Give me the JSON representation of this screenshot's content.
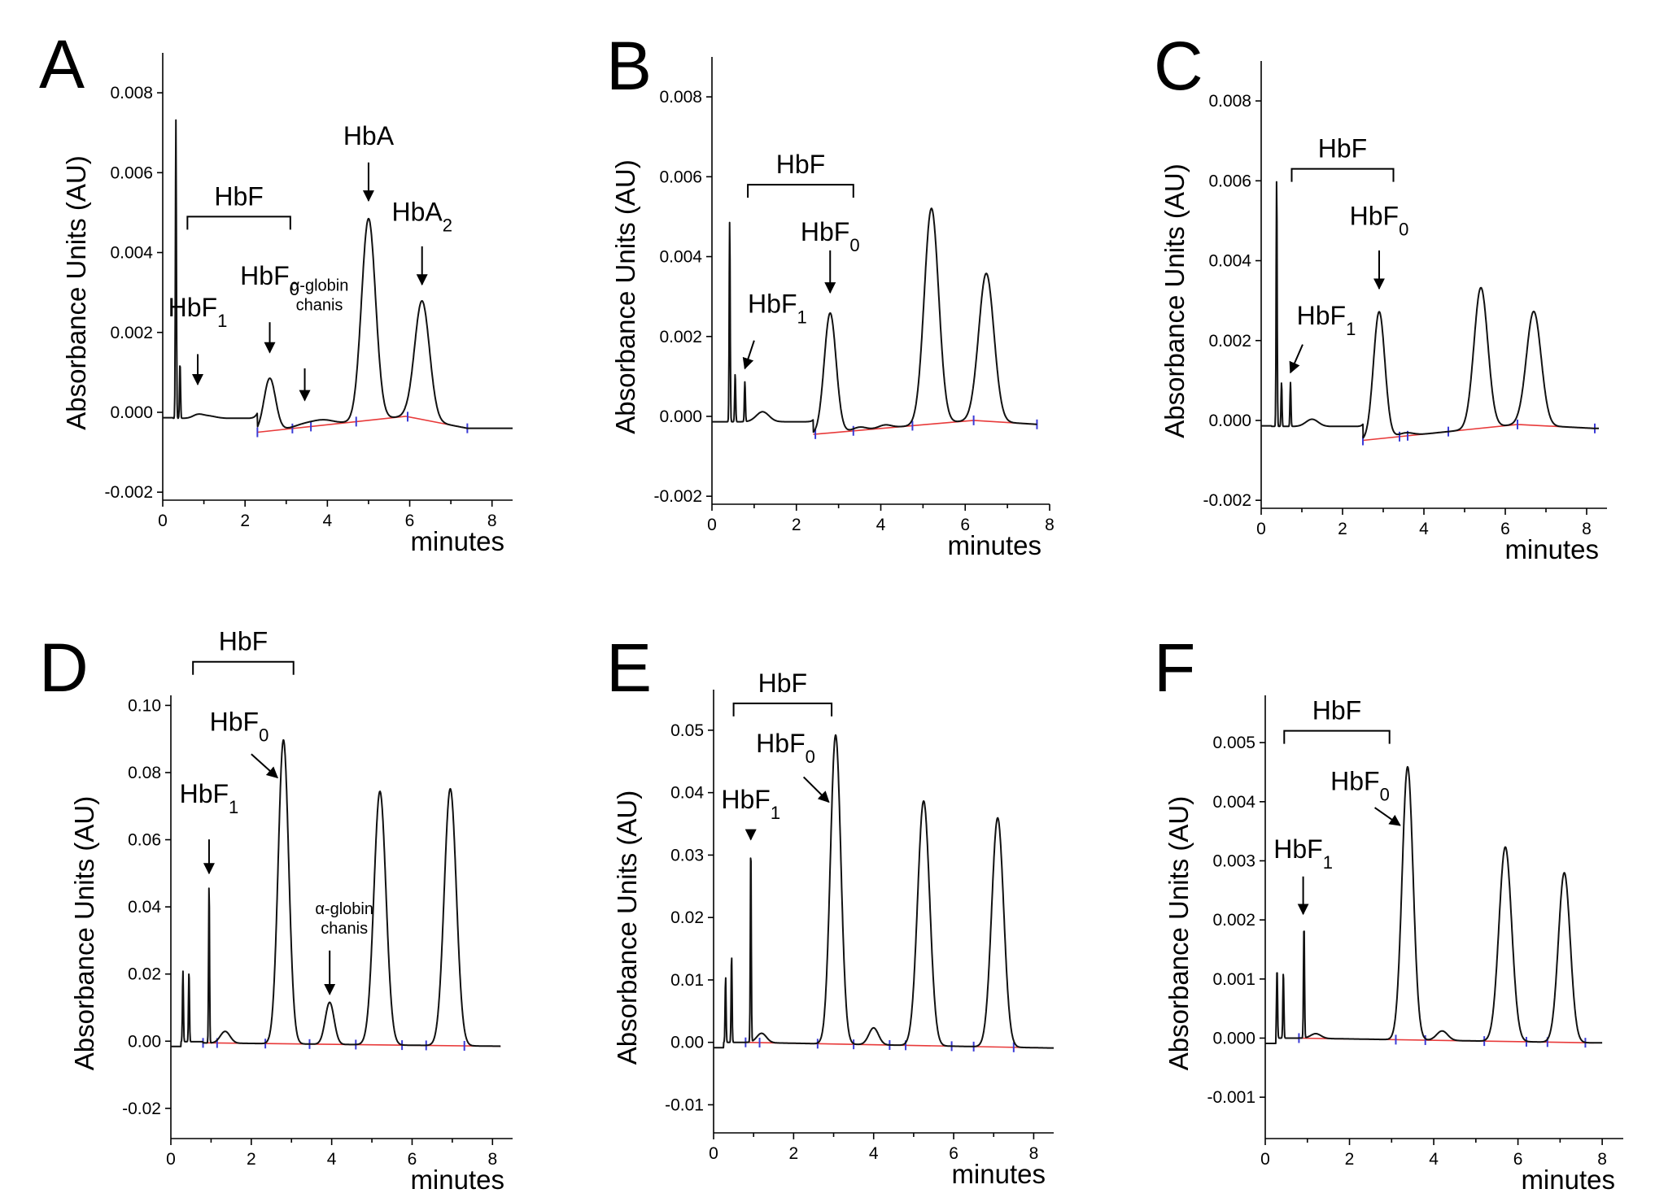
{
  "chart_data": [
    {
      "panel": "A",
      "type": "line",
      "ylabel": "Absorbance Units (AU)",
      "xlabel": "minutes",
      "xlim": [
        0,
        8.5
      ],
      "ylim": [
        -0.0022,
        0.009
      ],
      "xticks": [
        0,
        2,
        4,
        6,
        8
      ],
      "yticks": [
        -0.002,
        0.0,
        0.002,
        0.004,
        0.006,
        0.008
      ],
      "ytick_labels": [
        "-0.002",
        "0.000",
        "0.002",
        "0.004",
        "0.006",
        "0.008"
      ],
      "x_end": 8.5,
      "injection_spikes": [
        {
          "x": 0.32,
          "height": 0.0075
        },
        {
          "x": 0.42,
          "height": 0.0014
        }
      ],
      "peaks": [
        {
          "name": "HbF1",
          "x": 0.85,
          "height": 8e-05,
          "width": 0.12
        },
        {
          "x": 1.1,
          "height": 6e-05,
          "width": 0.18
        },
        {
          "name": "HbF0",
          "x": 2.6,
          "height": 0.00132,
          "width": 0.14
        },
        {
          "name": "alpha-globin chains",
          "x": 3.45,
          "height": 8e-05,
          "width": 0.25
        },
        {
          "x": 3.9,
          "height": 0.00012,
          "width": 0.25
        },
        {
          "name": "HbA",
          "x": 5.0,
          "height": 0.00505,
          "width": 0.17
        },
        {
          "name": "HbA2",
          "x": 6.3,
          "height": 0.00297,
          "width": 0.18
        }
      ],
      "baseline": [
        [
          2.3,
          -0.0005
        ],
        [
          5.9,
          -0.0001
        ],
        [
          7.4,
          -0.0004
        ]
      ],
      "baseline_marks": [
        2.3,
        3.15,
        3.6,
        4.7,
        5.95,
        7.4
      ],
      "annotations": [
        {
          "text": "HbF",
          "kind": "bracket",
          "x1": 0.6,
          "x2": 3.1,
          "y": 0.0049
        },
        {
          "text": "HbF",
          "sub": "1",
          "kind": "arrow",
          "x": 0.85,
          "label_y": 0.0024,
          "arrow_from": 0.0017,
          "arrow_to": 0.0007
        },
        {
          "text": "HbF",
          "sub": "0",
          "kind": "arrow",
          "x": 2.6,
          "label_y": 0.0032,
          "arrow_from": 0.0025,
          "arrow_to": 0.0015
        },
        {
          "text": "α-globin",
          "text2": "chanis",
          "kind": "arrow-small",
          "x": 3.45,
          "label_y": 0.0028,
          "arrow_from": 0.0011,
          "arrow_to": 0.0003
        },
        {
          "text": "HbA",
          "kind": "arrow",
          "x": 5.0,
          "label_y": 0.0067,
          "arrow_from": 0.0065,
          "arrow_to": 0.0053
        },
        {
          "text": "HbA",
          "sub": "2",
          "kind": "arrow",
          "x": 6.3,
          "label_y": 0.0048,
          "arrow_from": 0.0044,
          "arrow_to": 0.0032
        }
      ]
    },
    {
      "panel": "B",
      "type": "line",
      "ylabel": "Absorbance Units (AU)",
      "xlabel": "minutes",
      "xlim": [
        0,
        8.0
      ],
      "ylim": [
        -0.0022,
        0.009
      ],
      "xticks": [
        0,
        2,
        4,
        6,
        8
      ],
      "yticks": [
        -0.002,
        0.0,
        0.002,
        0.004,
        0.006,
        0.008
      ],
      "ytick_labels": [
        "-0.002",
        "0.000",
        "0.002",
        "0.004",
        "0.006",
        "0.008"
      ],
      "x_end": 7.7,
      "injection_spikes": [
        {
          "x": 0.42,
          "height": 0.005
        },
        {
          "x": 0.55,
          "height": 0.0012
        },
        {
          "x": 0.78,
          "height": 0.001
        }
      ],
      "peaks": [
        {
          "x": 1.2,
          "height": 0.00025,
          "width": 0.15
        },
        {
          "name": "HbF0",
          "x": 2.8,
          "height": 0.003,
          "width": 0.14
        },
        {
          "x": 3.5,
          "height": 8e-05,
          "width": 0.15
        },
        {
          "x": 4.1,
          "height": 8e-05,
          "width": 0.15
        },
        {
          "x": 5.2,
          "height": 0.0054,
          "width": 0.17
        },
        {
          "x": 6.5,
          "height": 0.0037,
          "width": 0.18
        }
      ],
      "baseline": [
        [
          2.4,
          -0.00045
        ],
        [
          6.2,
          -0.0001
        ],
        [
          7.7,
          -0.0002
        ]
      ],
      "baseline_marks": [
        2.45,
        3.35,
        4.75,
        6.2,
        7.7
      ],
      "annotations": [
        {
          "text": "HbF",
          "kind": "bracket",
          "x1": 0.85,
          "x2": 3.35,
          "y": 0.0058
        },
        {
          "text": "HbF",
          "sub": "1",
          "kind": "arrow-diag",
          "x": 0.78,
          "label_x": 1.55,
          "label_y": 0.0026,
          "from_x": 1.0,
          "arrow_from": 0.0019,
          "arrow_to": 0.0012
        },
        {
          "text": "HbF",
          "sub": "0",
          "kind": "arrow",
          "x": 2.8,
          "label_y": 0.0044,
          "arrow_from": 0.0044,
          "arrow_to": 0.0031
        }
      ]
    },
    {
      "panel": "C",
      "type": "line",
      "ylabel": "Absorbance Units (AU)",
      "xlabel": "minutes",
      "xlim": [
        0,
        8.5
      ],
      "ylim": [
        -0.0022,
        0.009
      ],
      "xticks": [
        0,
        2,
        4,
        6,
        8
      ],
      "yticks": [
        -0.002,
        0.0,
        0.002,
        0.004,
        0.006,
        0.008
      ],
      "ytick_labels": [
        "-0.002",
        "0.000",
        "0.002",
        "0.004",
        "0.006",
        "0.008"
      ],
      "x_end": 8.3,
      "injection_spikes": [
        {
          "x": 0.38,
          "height": 0.0062
        },
        {
          "x": 0.5,
          "height": 0.0011
        },
        {
          "x": 0.72,
          "height": 0.0011
        }
      ],
      "peaks": [
        {
          "x": 1.25,
          "height": 0.00018,
          "width": 0.15
        },
        {
          "name": "HbF0",
          "x": 2.9,
          "height": 0.00318,
          "width": 0.14
        },
        {
          "x": 3.55,
          "height": 8e-05,
          "width": 0.18
        },
        {
          "x": 5.4,
          "height": 0.00352,
          "width": 0.17
        },
        {
          "x": 6.7,
          "height": 0.00285,
          "width": 0.18
        }
      ],
      "baseline": [
        [
          2.5,
          -0.0005
        ],
        [
          6.3,
          -0.0001
        ],
        [
          8.2,
          -0.0002
        ]
      ],
      "baseline_marks": [
        2.5,
        3.4,
        3.6,
        4.6,
        6.3,
        8.2
      ],
      "annotations": [
        {
          "text": "HbF",
          "kind": "bracket",
          "x1": 0.75,
          "x2": 3.25,
          "y": 0.0063
        },
        {
          "text": "HbF",
          "sub": "1",
          "kind": "arrow-diag",
          "x": 0.72,
          "label_x": 1.6,
          "label_y": 0.0024,
          "from_x": 1.02,
          "arrow_from": 0.0019,
          "arrow_to": 0.0012
        },
        {
          "text": "HbF",
          "sub": "0",
          "kind": "arrow",
          "x": 2.9,
          "label_y": 0.0049,
          "arrow_from": 0.0045,
          "arrow_to": 0.0033
        }
      ]
    },
    {
      "panel": "D",
      "type": "line",
      "ylabel": "Absorbance Units (AU)",
      "xlabel": "minutes",
      "xlim": [
        0,
        8.5
      ],
      "ylim": [
        -0.029,
        0.103
      ],
      "xticks": [
        0,
        2,
        4,
        6,
        8
      ],
      "yticks": [
        -0.02,
        0.0,
        0.02,
        0.04,
        0.06,
        0.08,
        0.1
      ],
      "ytick_labels": [
        "-0.02",
        "0.00",
        "0.02",
        "0.04",
        "0.06",
        "0.08",
        "0.10"
      ],
      "x_end": 8.2,
      "injection_spikes": [
        {
          "x": 0.3,
          "height": 0.021
        },
        {
          "x": 0.45,
          "height": 0.021
        },
        {
          "x": 0.95,
          "height": 0.047
        }
      ],
      "peaks": [
        {
          "x": 1.35,
          "height": 0.0035,
          "width": 0.12
        },
        {
          "name": "HbF0",
          "x": 2.8,
          "height": 0.0905,
          "width": 0.13
        },
        {
          "name": "alpha-globin chains",
          "x": 3.95,
          "height": 0.0125,
          "width": 0.11
        },
        {
          "x": 5.2,
          "height": 0.0755,
          "width": 0.15
        },
        {
          "x": 6.95,
          "height": 0.0765,
          "width": 0.15
        }
      ],
      "baseline": [
        [
          0.8,
          -0.0005
        ],
        [
          8.2,
          -0.0015
        ]
      ],
      "baseline_marks": [
        0.8,
        1.15,
        2.35,
        3.45,
        4.6,
        5.75,
        6.35,
        7.3
      ],
      "annotations": [
        {
          "text": "HbF",
          "kind": "bracket",
          "x1": 0.55,
          "x2": 3.05,
          "y": 0.113
        },
        {
          "text": "HbF",
          "sub": "1",
          "kind": "arrow",
          "x": 0.95,
          "label_y": 0.071,
          "arrow_from": 0.063,
          "arrow_to": 0.05
        },
        {
          "text": "HbF",
          "sub": "0",
          "kind": "arrow-diag",
          "x": 2.65,
          "label_x": 1.7,
          "label_y": 0.0925,
          "from_x": 2.0,
          "arrow_from": 0.0855,
          "arrow_to": 0.0785
        },
        {
          "text": "α-globin",
          "text2": "chanis",
          "kind": "arrow-small",
          "x": 3.95,
          "label_y": 0.035,
          "arrow_from": 0.027,
          "arrow_to": 0.014
        }
      ]
    },
    {
      "panel": "E",
      "type": "line",
      "ylabel": "Absorbance Units (AU)",
      "xlabel": "minutes",
      "xlim": [
        0,
        8.5
      ],
      "ylim": [
        -0.0145,
        0.0565
      ],
      "xticks": [
        0,
        2,
        4,
        6,
        8
      ],
      "yticks": [
        -0.01,
        0.0,
        0.01,
        0.02,
        0.03,
        0.04,
        0.05
      ],
      "ytick_labels": [
        "-0.01",
        "0.00",
        "0.01",
        "0.02",
        "0.03",
        "0.04",
        "0.05"
      ],
      "x_end": 8.5,
      "injection_spikes": [
        {
          "x": 0.3,
          "height": 0.0105
        },
        {
          "x": 0.45,
          "height": 0.014
        },
        {
          "x": 0.93,
          "height": 0.0315
        }
      ],
      "peaks": [
        {
          "x": 1.2,
          "height": 0.0015,
          "width": 0.12
        },
        {
          "name": "HbF0",
          "x": 3.05,
          "height": 0.0495,
          "width": 0.13
        },
        {
          "x": 4.0,
          "height": 0.0027,
          "width": 0.12
        },
        {
          "x": 5.25,
          "height": 0.0392,
          "width": 0.15
        },
        {
          "x": 7.1,
          "height": 0.0367,
          "width": 0.15
        }
      ],
      "baseline": [
        [
          0.8,
          0.0
        ],
        [
          8.4,
          -0.0009
        ]
      ],
      "baseline_marks": [
        0.8,
        1.15,
        2.6,
        3.5,
        4.4,
        4.8,
        5.95,
        6.5,
        7.5
      ],
      "annotations": [
        {
          "text": "HbF",
          "kind": "bracket",
          "x1": 0.5,
          "x2": 2.95,
          "y": 0.0543
        },
        {
          "text": "HbF",
          "sub": "1",
          "kind": "arrow",
          "x": 0.93,
          "label_y": 0.0375,
          "arrow_from": 0.0345,
          "arrow_to": 0.0325
        },
        {
          "text": "HbF",
          "sub": "0",
          "kind": "arrow-diag",
          "x": 2.88,
          "label_x": 1.8,
          "label_y": 0.0465,
          "from_x": 2.25,
          "arrow_from": 0.0425,
          "arrow_to": 0.0385
        }
      ]
    },
    {
      "panel": "F",
      "type": "line",
      "ylabel": "Absorbance Units (AU)",
      "xlabel": "minutes",
      "xlim": [
        0,
        8.5
      ],
      "ylim": [
        -0.0017,
        0.0058
      ],
      "xticks": [
        0,
        2,
        4,
        6,
        8
      ],
      "yticks": [
        -0.001,
        0.0,
        0.001,
        0.002,
        0.003,
        0.004,
        0.005
      ],
      "ytick_labels": [
        "-0.001",
        "0.000",
        "0.001",
        "0.002",
        "0.003",
        "0.004",
        "0.005"
      ],
      "x_end": 8.0,
      "injection_spikes": [
        {
          "x": 0.28,
          "height": 0.00118
        },
        {
          "x": 0.43,
          "height": 0.00112
        },
        {
          "x": 0.92,
          "height": 0.00193
        }
      ],
      "peaks": [
        {
          "x": 1.2,
          "height": 8e-05,
          "width": 0.12
        },
        {
          "name": "HbF0",
          "x": 3.38,
          "height": 0.00462,
          "width": 0.13
        },
        {
          "x": 4.2,
          "height": 0.00016,
          "width": 0.13
        },
        {
          "x": 5.7,
          "height": 0.00329,
          "width": 0.15
        },
        {
          "x": 7.1,
          "height": 0.00287,
          "width": 0.14
        }
      ],
      "baseline": [
        [
          0.8,
          0.0
        ],
        [
          7.8,
          -8e-05
        ]
      ],
      "baseline_marks": [
        0.8,
        3.1,
        3.8,
        5.2,
        6.2,
        6.7,
        7.6
      ],
      "annotations": [
        {
          "text": "HbF",
          "kind": "bracket",
          "x1": 0.45,
          "x2": 2.95,
          "y": 0.0052
        },
        {
          "text": "HbF",
          "sub": "1",
          "kind": "arrow",
          "x": 0.9,
          "label_y": 0.00305,
          "arrow_from": 0.0029,
          "arrow_to": 0.0021
        },
        {
          "text": "HbF",
          "sub": "0",
          "kind": "arrow-diag",
          "x": 3.2,
          "label_x": 2.25,
          "label_y": 0.0042,
          "from_x": 2.6,
          "arrow_from": 0.0039,
          "arrow_to": 0.0036
        }
      ]
    }
  ]
}
